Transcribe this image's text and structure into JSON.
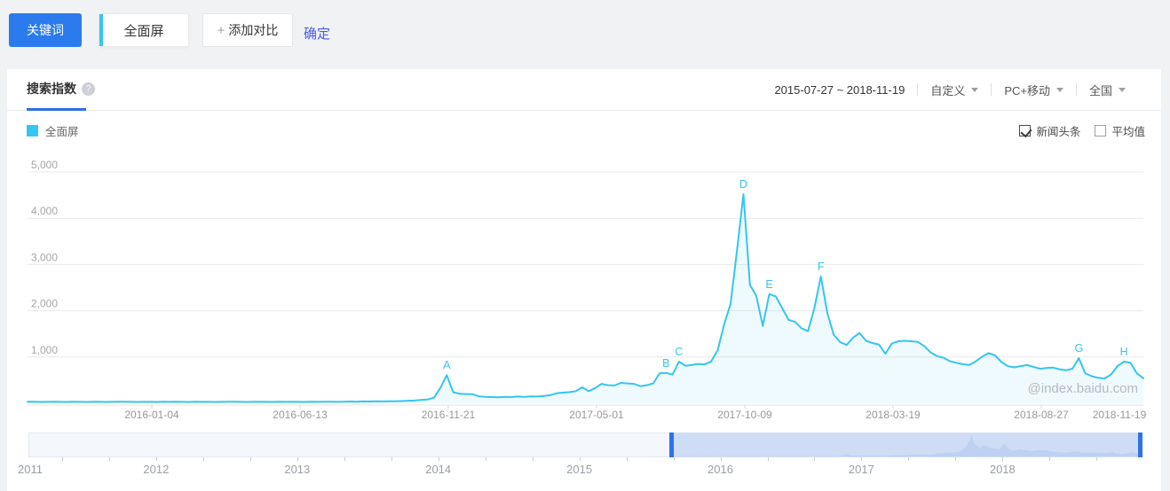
{
  "toolbar": {
    "keyword_label": "关键词",
    "keyword_value": "全面屏",
    "add_plus": "+",
    "add_compare_label": "添加对比",
    "confirm_label": "确定"
  },
  "panel": {
    "tab": "搜索指数",
    "help_icon": "?",
    "date_range": "2015-07-27 ~ 2018-11-19",
    "range_mode": "自定义",
    "device": "PC+移动",
    "region": "全国",
    "legend": {
      "name": "全面屏",
      "color": "#35c5f0"
    },
    "toggles": [
      {
        "label": "新闻头条",
        "checked": true
      },
      {
        "label": "平均值",
        "checked": false
      }
    ],
    "watermark": "@index.baidu.com"
  },
  "chart_data": {
    "type": "line",
    "title": "搜索指数",
    "series_name": "全面屏",
    "interval": "weekly",
    "x_start": "2015-07-27",
    "x_end": "2018-11-19",
    "ylim": [
      0,
      5000
    ],
    "yticks": [
      1000,
      2000,
      3000,
      4000,
      5000
    ],
    "ytick_labels": [
      "1,000",
      "2,000",
      "3,000",
      "4,000",
      "5,000"
    ],
    "xtick_labels": [
      "2016-01-04",
      "2016-06-13",
      "2016-11-21",
      "2017-05-01",
      "2017-10-09",
      "2018-03-19",
      "2018-08-27",
      "2018-11-19"
    ],
    "legend_position": "top-left",
    "grid": true,
    "line_color": "#35c5f0",
    "values": [
      30,
      32,
      28,
      30,
      34,
      30,
      28,
      32,
      30,
      29,
      31,
      33,
      28,
      30,
      32,
      35,
      30,
      28,
      31,
      30,
      29,
      32,
      30,
      34,
      30,
      28,
      33,
      30,
      31,
      29,
      30,
      32,
      35,
      30,
      28,
      30,
      33,
      31,
      29,
      32,
      30,
      34,
      30,
      28,
      32,
      30,
      35,
      32,
      30,
      32,
      38,
      35,
      40,
      38,
      42,
      40,
      45,
      42,
      48,
      55,
      60,
      70,
      80,
      120,
      330,
      610,
      240,
      205,
      200,
      195,
      150,
      140,
      135,
      130,
      140,
      135,
      145,
      140,
      150,
      145,
      155,
      175,
      215,
      230,
      240,
      260,
      345,
      260,
      330,
      420,
      390,
      385,
      440,
      430,
      420,
      370,
      390,
      430,
      650,
      655,
      620,
      900,
      810,
      830,
      850,
      840,
      905,
      1150,
      1700,
      2150,
      3300,
      4520,
      2560,
      2320,
      1670,
      2360,
      2310,
      2060,
      1800,
      1760,
      1620,
      1560,
      2060,
      2740,
      1950,
      1480,
      1320,
      1260,
      1420,
      1520,
      1350,
      1300,
      1270,
      1070,
      1290,
      1340,
      1350,
      1340,
      1330,
      1240,
      1100,
      1020,
      985,
      910,
      875,
      845,
      830,
      905,
      1005,
      1085,
      1035,
      890,
      800,
      775,
      805,
      825,
      785,
      745,
      765,
      770,
      735,
      715,
      745,
      975,
      645,
      585,
      550,
      535,
      625,
      805,
      900,
      875,
      645,
      540
    ],
    "markers": [
      {
        "label": "A",
        "week": 65,
        "value": 610
      },
      {
        "label": "B",
        "week": 99,
        "value": 655
      },
      {
        "label": "C",
        "week": 101,
        "value": 900
      },
      {
        "label": "D",
        "week": 111,
        "value": 4520
      },
      {
        "label": "E",
        "week": 115,
        "value": 2360
      },
      {
        "label": "F",
        "week": 123,
        "value": 2740
      },
      {
        "label": "G",
        "week": 163,
        "value": 975
      },
      {
        "label": "H",
        "week": 170,
        "value": 900
      }
    ]
  },
  "slider": {
    "years": [
      "2011",
      "2012",
      "2013",
      "2014",
      "2015",
      "2016",
      "2017",
      "2018"
    ],
    "selected_range": "2015-07-27 ~ 2018-11-19"
  },
  "colors": {
    "accent_blue": "#2b7bee",
    "link_blue": "#4a58f2",
    "series_cyan": "#35c5f0",
    "slider_selection": "#cedcf6",
    "slider_handle": "#2e73e8"
  }
}
